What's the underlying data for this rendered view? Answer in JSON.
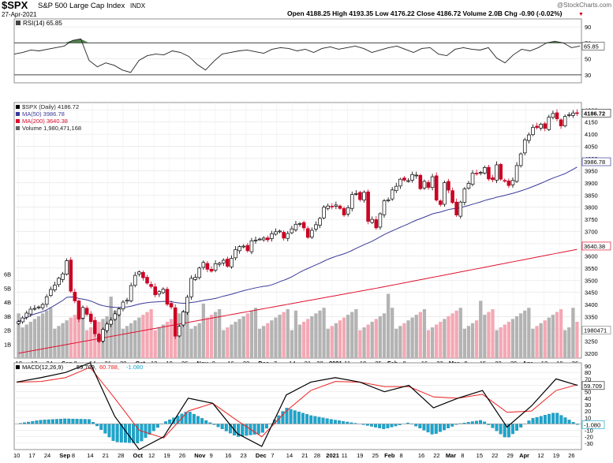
{
  "header": {
    "symbol": "$SPX",
    "name": "S&P 500 Large Cap Index",
    "exchange": "INDX",
    "date": "27-Apr-2021",
    "watermark": "@StockCharts.com",
    "quote": "Open 4188.25  High 4193.35  Low 4176.22  Close 4186.72  Volume 2.0B  Chg -0.90 (-0.02%)",
    "down_arrow": "▼"
  },
  "colors": {
    "up": "#000000",
    "down": "#cc0022",
    "ma50": "#3a3a9a",
    "ma200": "#e01030",
    "vol_up": "#b3b3b3",
    "vol_down": "#f4a8b4",
    "rsi_fill": "#4f7f4f",
    "macd": "#000000",
    "signal": "#ee2222",
    "hist": "#1aa7cf"
  },
  "chart_data": [
    {
      "type": "line",
      "panel": "RSI",
      "label": "RSI(14) 65.85",
      "value_box": "65.85",
      "ylim": [
        20,
        100
      ],
      "ticks": [
        30,
        50,
        70,
        90
      ],
      "reference_levels": [
        30,
        70
      ],
      "x": [
        0,
        4,
        8,
        12,
        16,
        20,
        24,
        28,
        32,
        36,
        40,
        44,
        48,
        52,
        56,
        60,
        64,
        68,
        72,
        76,
        80,
        84,
        88,
        92,
        96,
        100,
        104,
        108,
        112,
        116,
        120,
        124,
        128,
        132,
        136,
        140,
        144,
        148,
        152,
        156,
        160,
        164,
        168,
        172,
        176,
        180,
        184,
        188,
        192,
        196,
        200,
        204,
        208,
        212,
        216,
        220,
        224,
        228,
        232,
        236,
        240,
        244,
        248,
        252,
        256,
        260,
        264,
        268,
        272
      ],
      "values": [
        56,
        58,
        61,
        60,
        62,
        64,
        66,
        73,
        75,
        48,
        40,
        45,
        42,
        36,
        33,
        48,
        54,
        56,
        55,
        60,
        58,
        53,
        43,
        36,
        47,
        56,
        58,
        60,
        61,
        59,
        57,
        62,
        64,
        63,
        60,
        62,
        58,
        63,
        65,
        62,
        64,
        66,
        63,
        58,
        61,
        64,
        66,
        62,
        58,
        63,
        64,
        56,
        54,
        62,
        64,
        62,
        61,
        64,
        51,
        45,
        55,
        62,
        60,
        64,
        70,
        72,
        70,
        64,
        66
      ]
    },
    {
      "type": "candlestick",
      "panel": "price",
      "title": "$SPX (Daily) 4186.72",
      "legend": [
        "$SPX (Daily) 4186.72",
        "MA(50) 3986.78",
        "MA(200) 3640.38",
        "Volume 1,980,471,168"
      ],
      "ylim": [
        3180,
        4230
      ],
      "yticks": [
        3200,
        3250,
        3300,
        3350,
        3400,
        3450,
        3500,
        3550,
        3600,
        3650,
        3700,
        3750,
        3800,
        3850,
        3900,
        3950,
        4000,
        4050,
        4100,
        4150,
        4200
      ],
      "last_close_box": "4186.72",
      "ma50_box": "3986.78",
      "ma200_box": "3640.38",
      "volume_box": "1980471",
      "volume_axis_ticks": [
        "1B",
        "2B",
        "3B",
        "4B",
        "5B",
        "6B"
      ],
      "volume_ylim_billions": [
        0,
        7
      ],
      "x_tick_labels": [
        "10",
        "17",
        "24",
        "Sep",
        "8",
        "14",
        "21",
        "28",
        "Oct",
        "12",
        "19",
        "26",
        "Nov",
        "9",
        "16",
        "23",
        "Dec",
        "7",
        "14",
        "21",
        "28",
        "2021",
        "11",
        "19",
        "25",
        "Feb",
        "8",
        "16",
        "22",
        "Mar",
        "8",
        "15",
        "22",
        "29",
        "Apr",
        "12",
        "19",
        "26"
      ],
      "x_tick_positions": [
        0,
        5,
        10,
        15,
        19,
        24,
        29,
        34,
        39,
        44,
        49,
        54,
        59,
        64,
        69,
        74,
        79,
        84,
        89,
        94,
        98,
        102,
        107,
        112,
        117,
        121,
        126,
        132,
        137,
        141,
        146,
        151,
        156,
        161,
        165,
        171,
        176,
        181
      ],
      "close": [
        3330,
        3345,
        3365,
        3381,
        3384,
        3390,
        3400,
        3432,
        3462,
        3480,
        3508,
        3526,
        3580,
        3455,
        3415,
        3340,
        3388,
        3360,
        3330,
        3280,
        3248,
        3298,
        3320,
        3336,
        3362,
        3382,
        3410,
        3418,
        3478,
        3520,
        3534,
        3510,
        3488,
        3474,
        3440,
        3453,
        3463,
        3401,
        3390,
        3270,
        3311,
        3370,
        3430,
        3508,
        3512,
        3550,
        3573,
        3545,
        3537,
        3568,
        3570,
        3582,
        3557,
        3590,
        3626,
        3638,
        3640,
        3621,
        3662,
        3665,
        3669,
        3673,
        3666,
        3691,
        3699,
        3702,
        3673,
        3692,
        3711,
        3730,
        3733,
        3715,
        3676,
        3705,
        3728,
        3754,
        3800,
        3805,
        3801,
        3809,
        3795,
        3768,
        3798,
        3852,
        3856,
        3831,
        3861,
        3742,
        3750,
        3715,
        3773,
        3826,
        3830,
        3871,
        3886,
        3915,
        3911,
        3909,
        3934,
        3932,
        3876,
        3906,
        3881,
        3925,
        3829,
        3811,
        3901,
        3870,
        3819,
        3768,
        3821,
        3875,
        3898,
        3940,
        3939,
        3943,
        3963,
        3916,
        3913,
        3974,
        3915,
        3909,
        3889,
        3910,
        3971,
        4019,
        4077,
        4097,
        4128,
        4127,
        4141,
        4124,
        4170,
        4185,
        4163,
        4134,
        4173,
        4180,
        4187,
        4187
      ]
    },
    {
      "type": "line",
      "panel": "MACD",
      "label": "MACD(12,26,9) 59.709, 60.788, -1.080",
      "labels": {
        "macd": "MACD(12,26,9)",
        "macd_value": "59.709,",
        "signal_value": "60.788,",
        "hist_value": "-1.080"
      },
      "macd_box": "59.709",
      "hist_box": "-1.080",
      "ylim": [
        -40,
        95
      ],
      "ticks": [
        -30,
        -20,
        -10,
        0,
        10,
        20,
        30,
        40,
        50,
        60,
        70,
        80,
        90
      ],
      "x_tick_labels": [
        "10",
        "17",
        "24",
        "Sep",
        "8",
        "14",
        "21",
        "28",
        "Oct",
        "12",
        "19",
        "26",
        "Nov",
        "9",
        "16",
        "23",
        "Dec",
        "7",
        "14",
        "21",
        "28",
        "2021",
        "11",
        "19",
        "25",
        "Feb",
        "8",
        "16",
        "22",
        "Mar",
        "8",
        "15",
        "22",
        "29",
        "Apr",
        "12",
        "19",
        "26"
      ],
      "x": [
        0,
        8,
        16,
        24,
        32,
        40,
        48,
        56,
        64,
        72,
        80,
        88,
        96,
        104,
        112,
        120,
        128,
        136,
        144,
        152,
        160,
        168,
        176,
        183
      ],
      "series": [
        {
          "name": "MACD",
          "values": [
            65,
            72,
            80,
            95,
            12,
            -40,
            -20,
            40,
            32,
            -15,
            -35,
            45,
            65,
            72,
            65,
            50,
            60,
            25,
            40,
            52,
            -5,
            28,
            70,
            60
          ]
        },
        {
          "name": "Signal",
          "values": [
            65,
            66,
            72,
            88,
            40,
            -10,
            -22,
            20,
            32,
            5,
            -20,
            20,
            52,
            66,
            65,
            58,
            58,
            42,
            40,
            46,
            18,
            20,
            52,
            61
          ]
        },
        {
          "name": "Histogram",
          "values": [
            0,
            6,
            8,
            7,
            -28,
            -30,
            2,
            20,
            0,
            -20,
            -15,
            25,
            13,
            6,
            0,
            -8,
            2,
            -17,
            0,
            6,
            -23,
            8,
            18,
            -1
          ]
        }
      ]
    }
  ]
}
